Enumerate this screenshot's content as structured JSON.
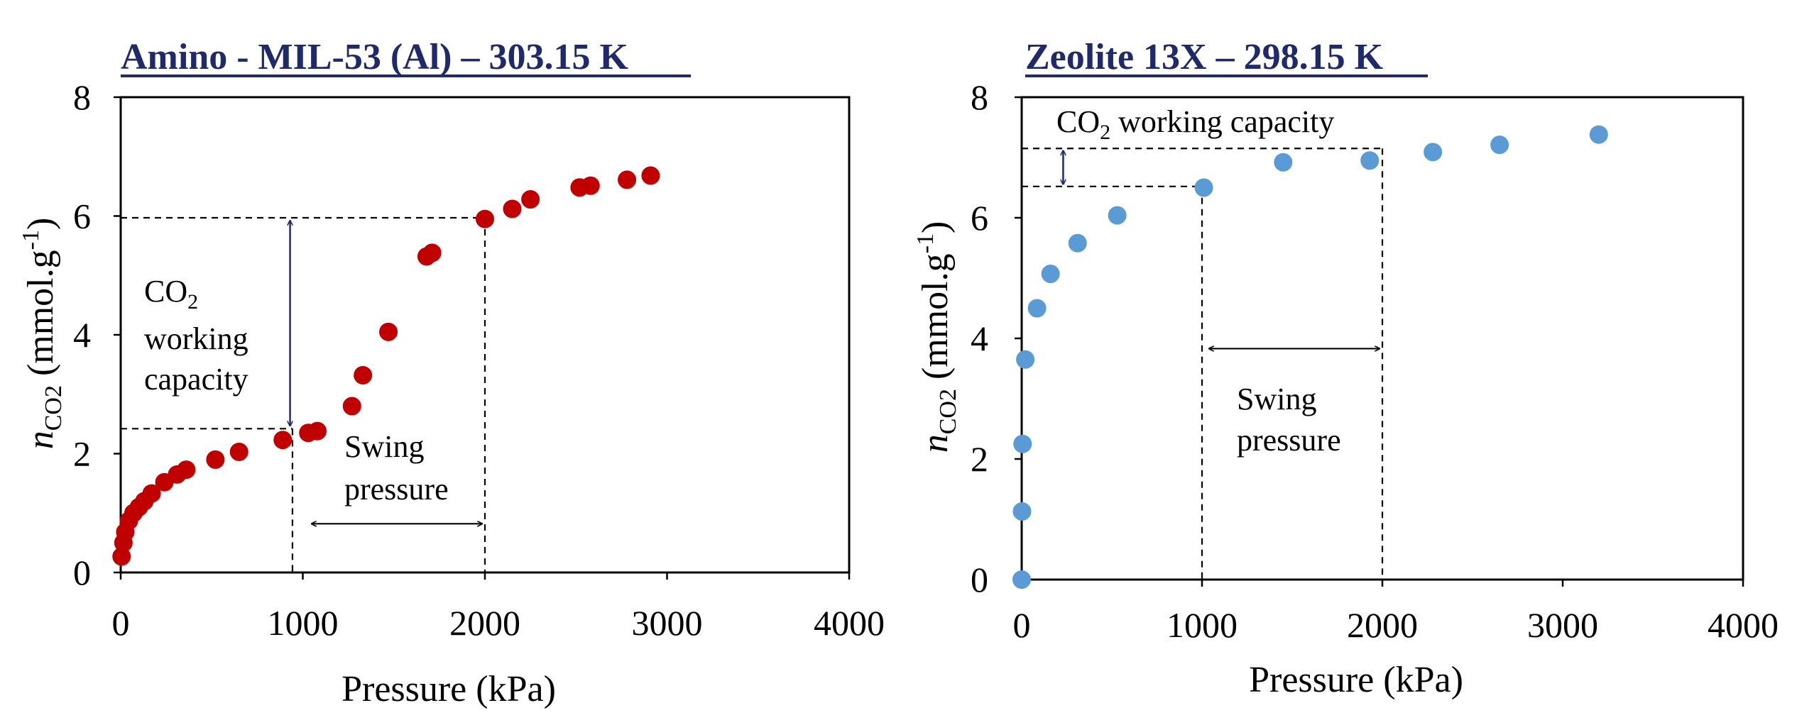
{
  "chart_data": [
    {
      "type": "scatter",
      "title": "Amino - MIL-53 (Al) – 303.15 K",
      "xlabel": "Pressure (kPa)",
      "ylabel": {
        "italic": "n",
        "sub": "CO2",
        "rest": " (mmol.g",
        "sup": "-1",
        "close": ")"
      },
      "xlim": [
        0,
        4000
      ],
      "ylim": [
        0,
        8
      ],
      "xticks": [
        "0",
        "1000",
        "2000",
        "3000",
        "4000"
      ],
      "yticks": [
        "0",
        "2",
        "4",
        "6",
        "8"
      ],
      "grid": false,
      "marker_color": "#c00000",
      "series": [
        {
          "x": [
            5,
            15,
            25,
            45,
            70,
            100,
            130,
            170,
            240,
            310,
            360,
            520,
            650,
            890,
            1030,
            1080,
            1270,
            1330,
            1470,
            1680,
            1710,
            2000,
            2150,
            2250,
            2520,
            2580,
            2780,
            2910
          ],
          "y": [
            0.27,
            0.5,
            0.68,
            0.87,
            1.0,
            1.1,
            1.2,
            1.33,
            1.52,
            1.65,
            1.73,
            1.9,
            2.03,
            2.23,
            2.35,
            2.38,
            2.8,
            3.32,
            4.05,
            5.32,
            5.38,
            5.95,
            6.12,
            6.28,
            6.48,
            6.51,
            6.61,
            6.68
          ]
        }
      ],
      "annotations": {
        "working_capacity": {
          "label_line1_main": "CO",
          "label_line1_sub": "2",
          "label_line2": "working",
          "label_line3": "capacity",
          "y_high": 5.97,
          "y_low": 2.42,
          "x_arrow": 930
        },
        "swing_pressure": {
          "label_line1": "Swing",
          "label_line2": "pressure",
          "x_low": 990,
          "x_high": 2000,
          "y_arrow": 0.82
        }
      }
    },
    {
      "type": "scatter",
      "title": "Zeolite 13X – 298.15 K",
      "xlabel": "Pressure (kPa)",
      "ylabel": {
        "italic": "n",
        "sub": "CO2",
        "rest": " (mmol.g",
        "sup": "-1",
        "close": ")"
      },
      "xlim": [
        0,
        4000
      ],
      "ylim": [
        0,
        8
      ],
      "xticks": [
        "0",
        "1000",
        "2000",
        "3000",
        "4000"
      ],
      "yticks": [
        "0",
        "2",
        "4",
        "6",
        "8"
      ],
      "grid": false,
      "marker_color": "#5b9bd5",
      "series": [
        {
          "x": [
            0,
            2,
            5,
            20,
            85,
            160,
            310,
            530,
            1010,
            1450,
            1930,
            2280,
            2650,
            3200
          ],
          "y": [
            0.0,
            1.13,
            2.25,
            3.65,
            4.5,
            5.07,
            5.58,
            6.04,
            6.5,
            6.92,
            6.95,
            7.09,
            7.21,
            7.38
          ]
        }
      ],
      "annotations": {
        "working_capacity": {
          "label_main": "CO",
          "label_sub": "2",
          "label_rest": " working capacity",
          "y_high": 7.15,
          "y_low": 6.52,
          "x_arrow": 230
        },
        "swing_pressure": {
          "label_line1": "Swing",
          "label_line2": "pressure",
          "x_low": 1000,
          "x_high": 2000,
          "y_arrow": 3.83
        }
      }
    }
  ]
}
